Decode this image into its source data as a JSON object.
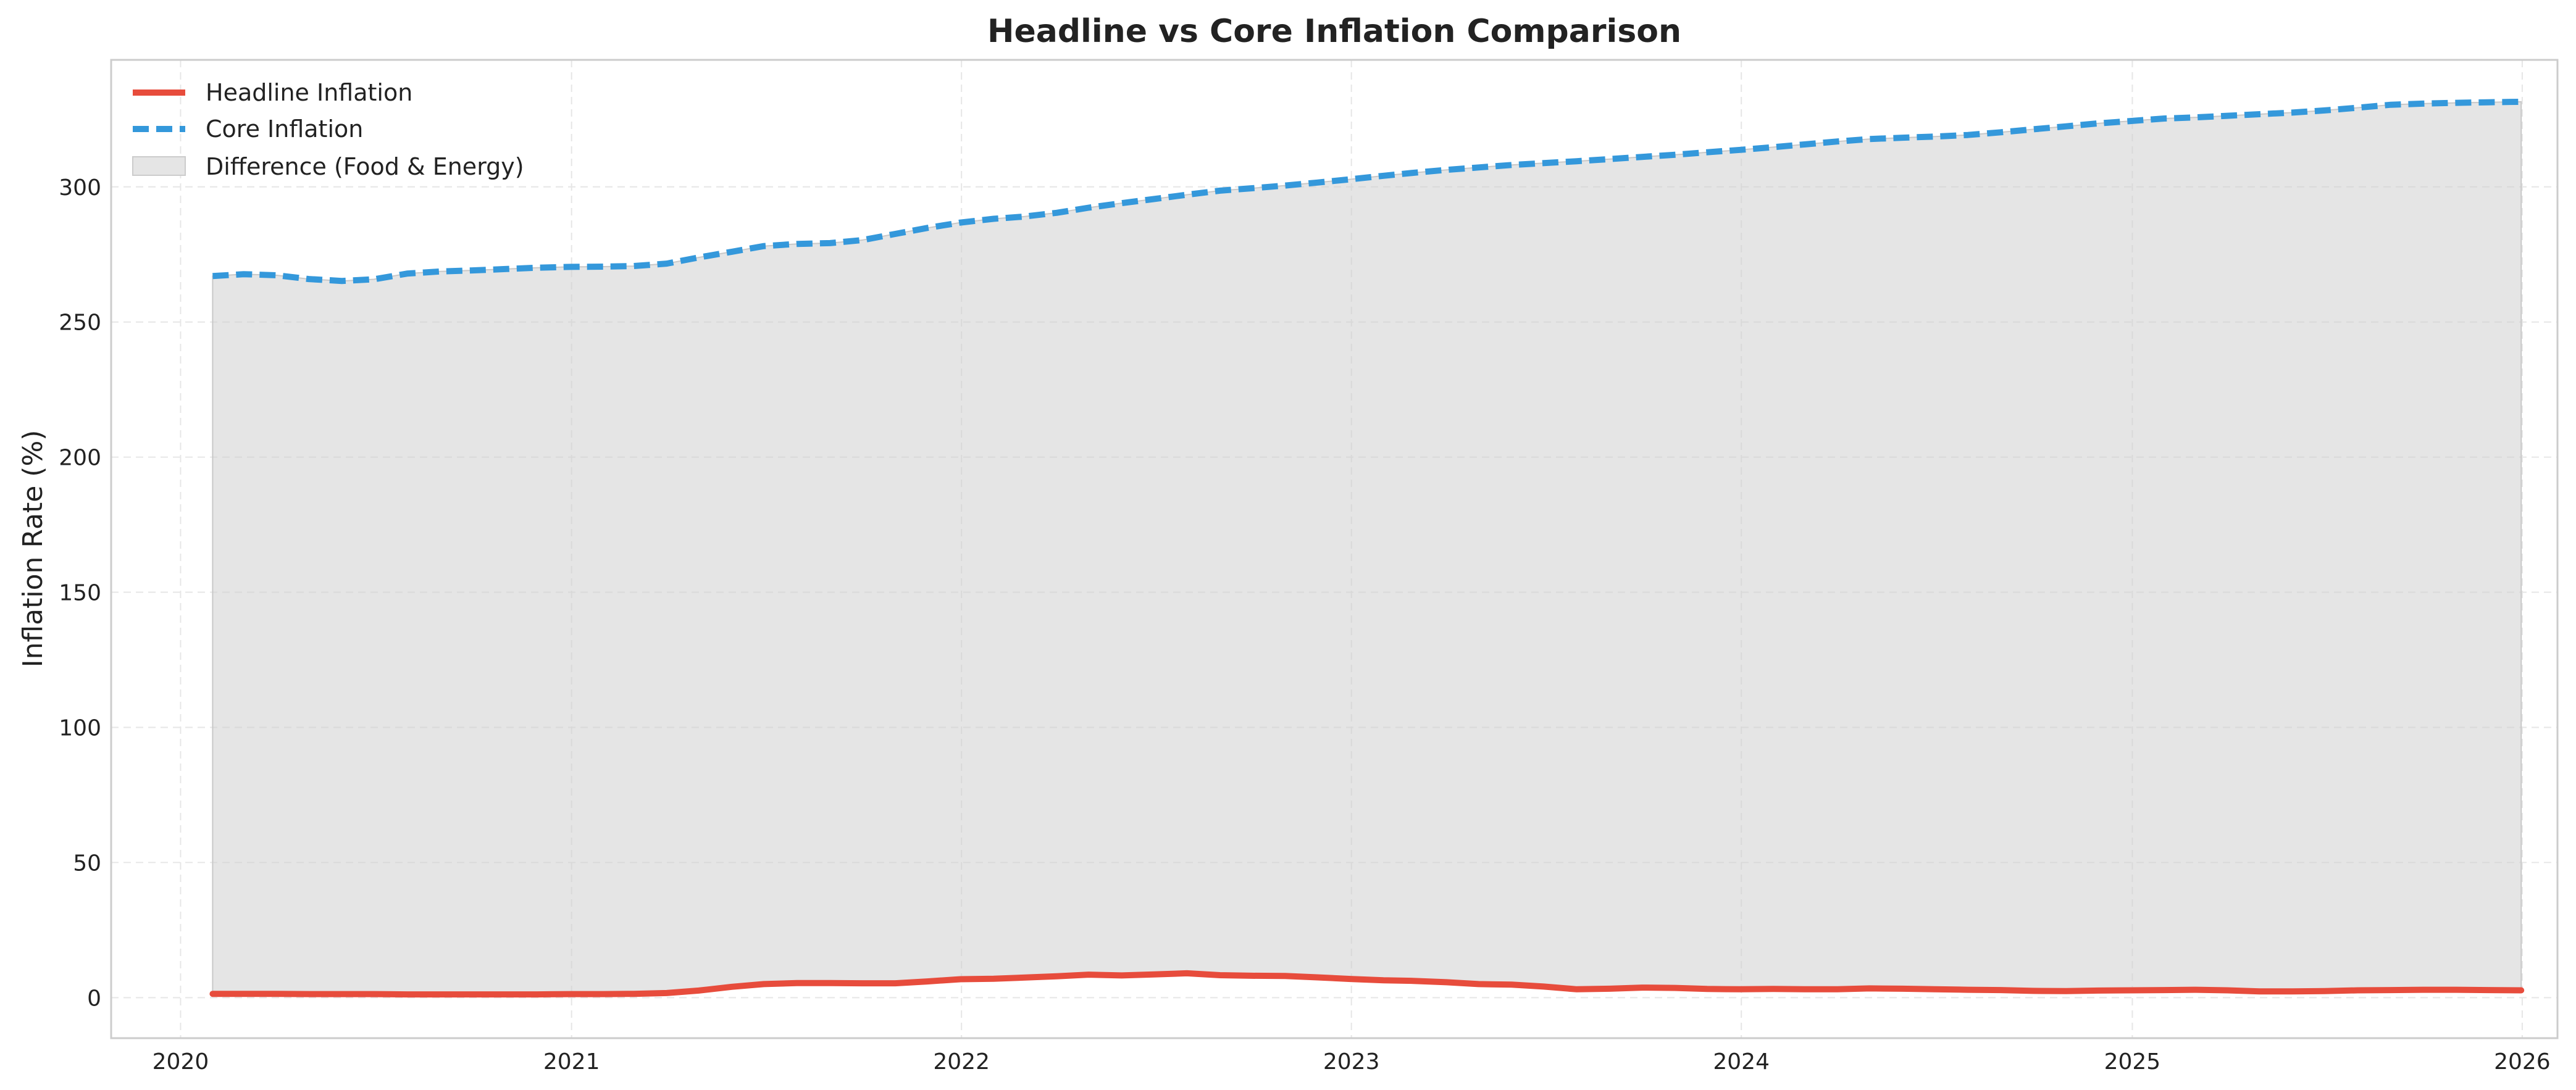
{
  "chart_data": {
    "type": "line",
    "title": "Headline vs Core Inflation Comparison",
    "xlabel": "",
    "ylabel": "Inflation Rate (%)",
    "xlim": [
      "2019-10-28",
      "2026-02-03"
    ],
    "ylim": [
      -15,
      347
    ],
    "x_ticks": [
      "2020",
      "2021",
      "2022",
      "2023",
      "2024",
      "2025",
      "2026"
    ],
    "y_ticks": [
      0,
      50,
      100,
      150,
      200,
      250,
      300
    ],
    "grid": true,
    "legend_position": "top-left",
    "x": [
      "2020-01-31",
      "2020-02-29",
      "2020-03-31",
      "2020-04-30",
      "2020-05-31",
      "2020-06-30",
      "2020-07-31",
      "2020-08-31",
      "2020-09-30",
      "2020-10-31",
      "2020-11-30",
      "2020-12-31",
      "2021-01-31",
      "2021-02-28",
      "2021-03-31",
      "2021-04-30",
      "2021-05-31",
      "2021-06-30",
      "2021-07-31",
      "2021-08-31",
      "2021-09-30",
      "2021-10-31",
      "2021-11-30",
      "2021-12-31",
      "2022-01-31",
      "2022-02-28",
      "2022-03-31",
      "2022-04-30",
      "2022-05-31",
      "2022-06-30",
      "2022-07-31",
      "2022-08-31",
      "2022-09-30",
      "2022-10-31",
      "2022-11-30",
      "2022-12-31",
      "2023-01-31",
      "2023-02-28",
      "2023-03-31",
      "2023-04-30",
      "2023-05-31",
      "2023-06-30",
      "2023-07-31",
      "2023-08-31",
      "2023-09-30",
      "2023-10-31",
      "2023-11-30",
      "2023-12-31",
      "2024-01-31",
      "2024-02-29",
      "2024-03-31",
      "2024-04-30",
      "2024-05-31",
      "2024-06-30",
      "2024-07-31",
      "2024-08-31",
      "2024-09-30",
      "2024-10-31",
      "2024-11-30",
      "2024-12-31",
      "2025-01-31",
      "2025-02-28",
      "2025-03-31",
      "2025-04-30",
      "2025-05-31",
      "2025-06-30",
      "2025-07-31",
      "2025-08-31",
      "2025-09-30",
      "2025-10-31",
      "2025-11-30",
      "2025-12-31"
    ],
    "series": [
      {
        "name": "Headline Inflation",
        "color": "#e74c3c",
        "style": "solid",
        "values": [
          1.4,
          1.4,
          1.4,
          1.3,
          1.3,
          1.3,
          1.2,
          1.2,
          1.2,
          1.2,
          1.2,
          1.3,
          1.3,
          1.4,
          1.7,
          2.6,
          4.0,
          5.0,
          5.4,
          5.4,
          5.3,
          5.3,
          6.0,
          6.8,
          7.0,
          7.4,
          7.9,
          8.5,
          8.2,
          8.6,
          9.0,
          8.3,
          8.1,
          8.0,
          7.5,
          6.9,
          6.4,
          6.2,
          5.7,
          5.0,
          4.8,
          4.1,
          3.1,
          3.3,
          3.7,
          3.6,
          3.2,
          3.1,
          3.2,
          3.1,
          3.1,
          3.4,
          3.3,
          3.1,
          2.9,
          2.8,
          2.5,
          2.4,
          2.6,
          2.7,
          2.8,
          2.9,
          2.7,
          2.3,
          2.3,
          2.4,
          2.7,
          2.8,
          2.9,
          2.9,
          2.8,
          2.7
        ]
      },
      {
        "name": "Core Inflation",
        "color": "#3498db",
        "style": "dashed",
        "values": [
          267.0,
          267.7,
          267.3,
          265.9,
          265.2,
          265.8,
          267.9,
          268.7,
          269.1,
          269.6,
          270.1,
          270.4,
          270.5,
          270.7,
          271.6,
          273.9,
          276.0,
          278.1,
          278.9,
          279.2,
          280.3,
          282.6,
          284.8,
          286.8,
          288.2,
          289.0,
          290.4,
          292.3,
          294.0,
          295.5,
          297.1,
          298.6,
          299.5,
          300.5,
          301.6,
          302.8,
          304.1,
          305.2,
          306.3,
          307.2,
          308.1,
          308.8,
          309.5,
          310.3,
          311.1,
          311.9,
          312.8,
          313.7,
          314.7,
          315.7,
          316.8,
          317.7,
          318.2,
          318.6,
          319.2,
          320.2,
          321.3,
          322.4,
          323.5,
          324.4,
          325.3,
          325.7,
          326.3,
          326.9,
          327.5,
          328.3,
          329.3,
          330.4,
          330.8,
          331.1,
          331.3,
          331.5
        ]
      }
    ],
    "fill_between": {
      "name": "Difference (Food & Energy)",
      "color": "#cccccc",
      "opacity": 0.5
    }
  }
}
